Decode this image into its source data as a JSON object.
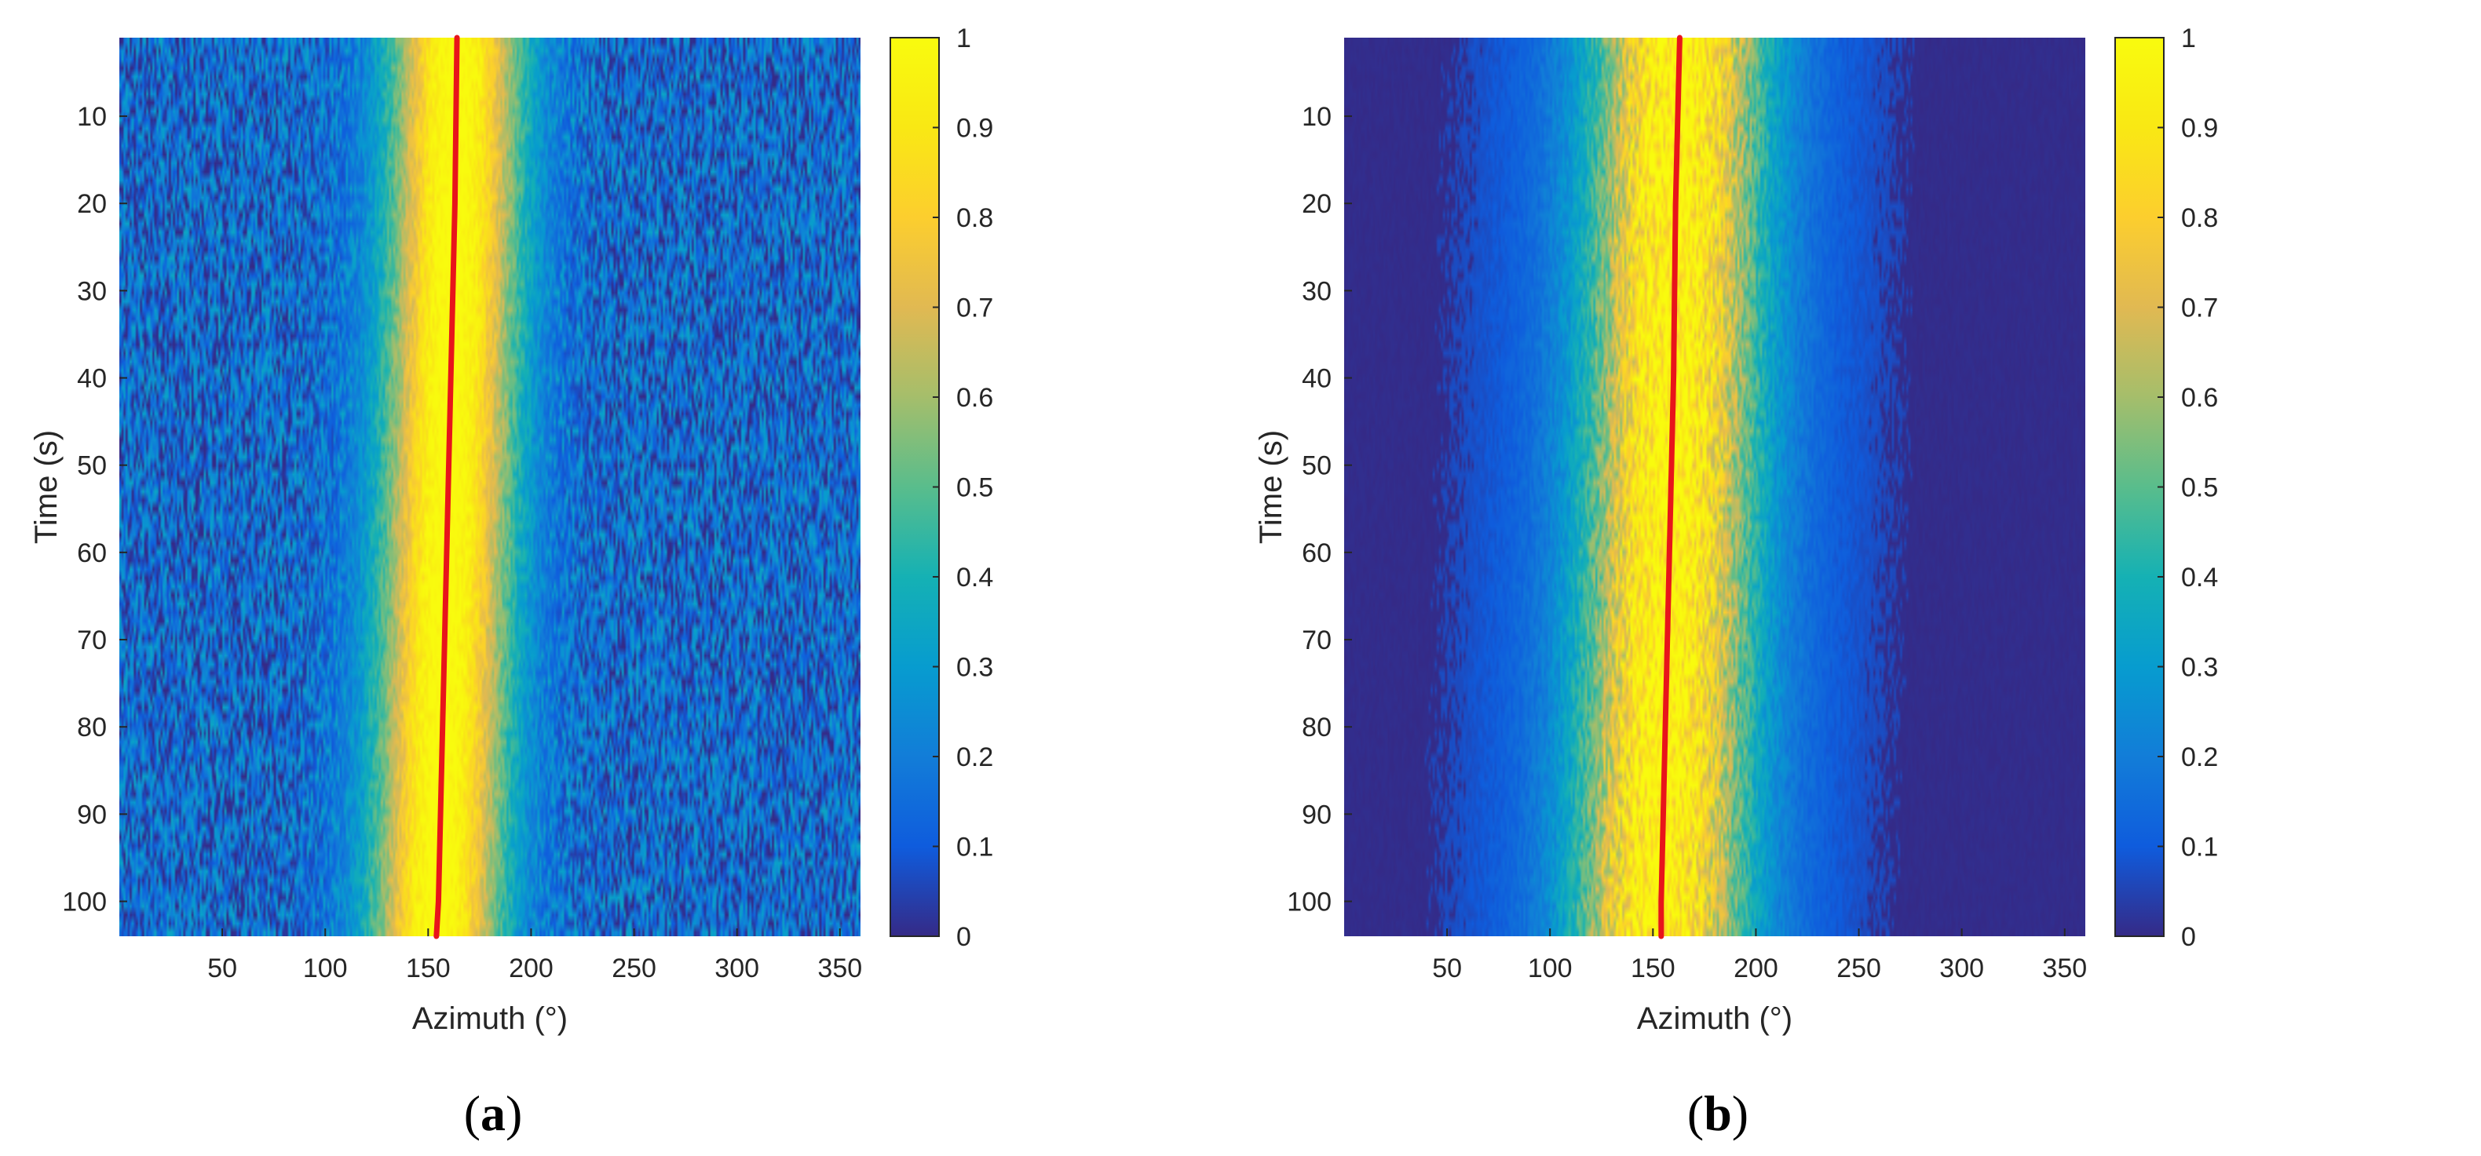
{
  "chart_data": [
    {
      "panel_label": "a",
      "type": "heatmap",
      "xlabel": "Azimuth (°)",
      "ylabel": "Time (s)",
      "xlim": [
        0,
        360
      ],
      "ylim": [
        1,
        104
      ],
      "y_reversed": true,
      "x_ticks": [
        50,
        100,
        150,
        200,
        250,
        300,
        350
      ],
      "y_ticks": [
        10,
        20,
        30,
        40,
        50,
        60,
        70,
        80,
        90,
        100
      ],
      "colorbar": {
        "colormap": "parula",
        "range": [
          0,
          1
        ],
        "ticks": [
          0,
          0.1,
          0.2,
          0.3,
          0.4,
          0.5,
          0.6,
          0.7,
          0.8,
          0.9,
          1
        ]
      },
      "background_level": 0.15,
      "noise_level": 0.12,
      "energy_band": {
        "peak_value": 0.85,
        "width_deg": 22
      },
      "overlay_line": {
        "color": "#e8141b",
        "time": [
          1,
          20,
          40,
          60,
          80,
          100,
          104
        ],
        "azimuth": [
          164,
          163,
          161,
          159,
          157,
          155,
          154
        ]
      },
      "colors": {
        "line": "#e8141b"
      }
    },
    {
      "panel_label": "b",
      "type": "heatmap",
      "xlabel": "Azimuth (°)",
      "ylabel": "Time (s)",
      "xlim": [
        0,
        360
      ],
      "ylim": [
        1,
        104
      ],
      "y_reversed": true,
      "x_ticks": [
        50,
        100,
        150,
        200,
        250,
        300,
        350
      ],
      "y_ticks": [
        10,
        20,
        30,
        40,
        50,
        60,
        70,
        80,
        90,
        100
      ],
      "colorbar": {
        "colormap": "parula",
        "range": [
          0,
          1
        ],
        "ticks": [
          0,
          0.1,
          0.2,
          0.3,
          0.4,
          0.5,
          0.6,
          0.7,
          0.8,
          0.9,
          1
        ]
      },
      "background_level": 0.0,
      "noise_level": 0.08,
      "energy_band": {
        "peak_value": 0.85,
        "width_deg": 28
      },
      "overlay_line": {
        "color": "#e8141b",
        "time": [
          1,
          20,
          40,
          60,
          80,
          100,
          104
        ],
        "azimuth": [
          163,
          161,
          160,
          158,
          156,
          154,
          154
        ]
      },
      "colors": {
        "line": "#e8141b"
      }
    }
  ]
}
